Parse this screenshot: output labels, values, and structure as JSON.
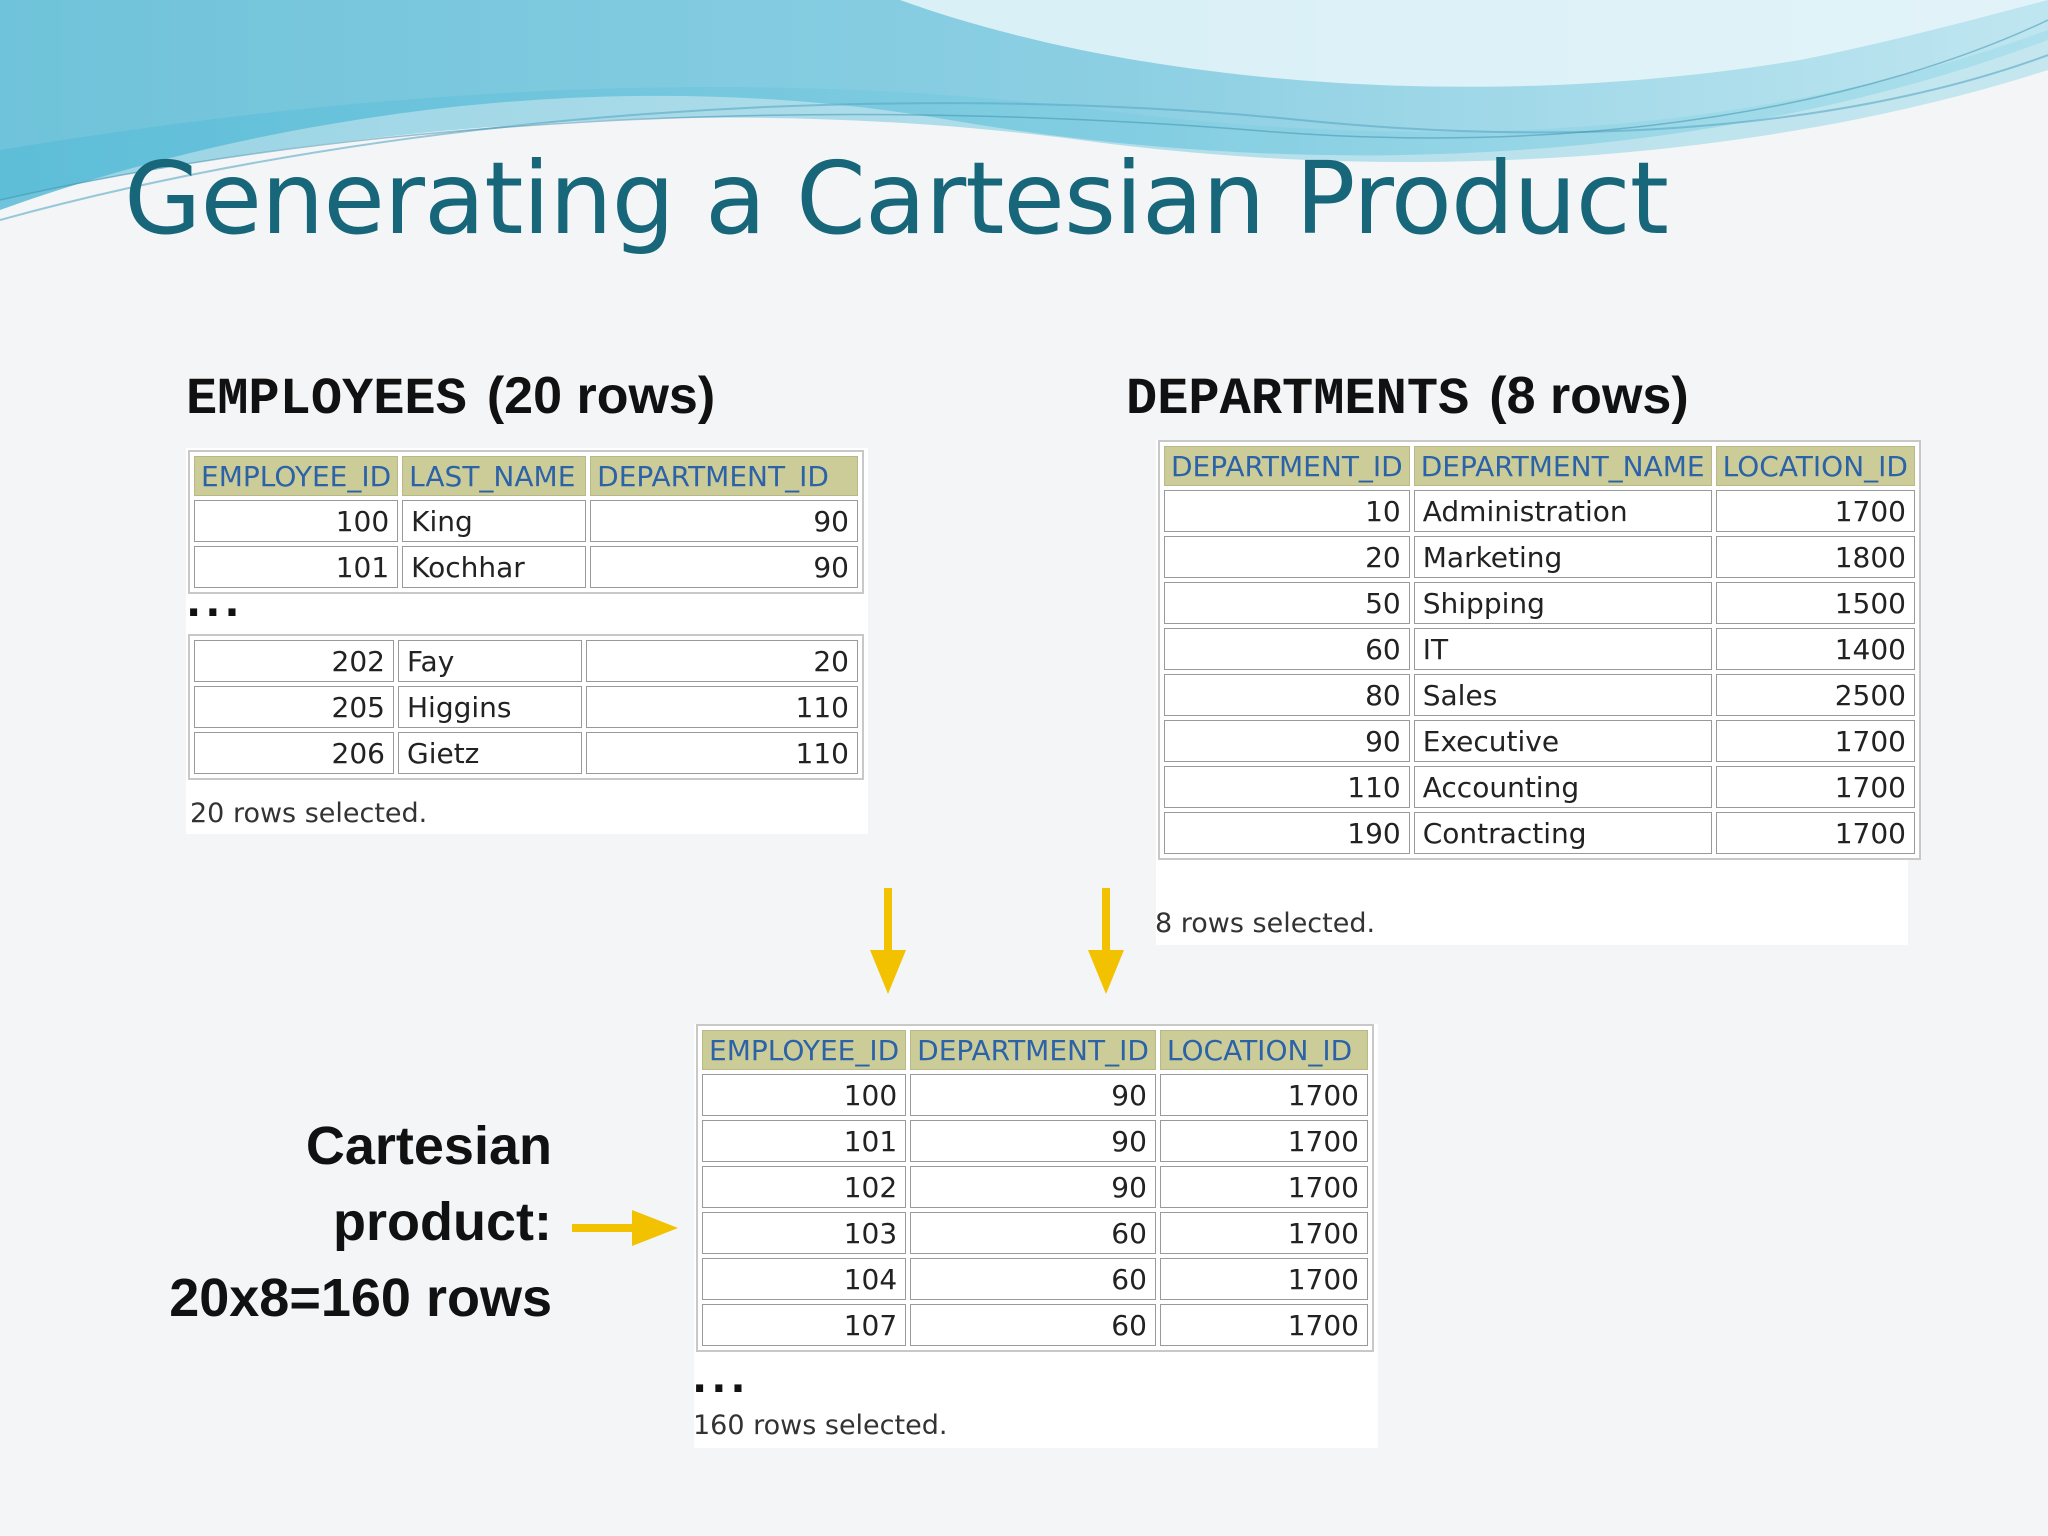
{
  "title": "Generating a Cartesian Product",
  "employees": {
    "table_name": "EMPLOYEES",
    "row_note": "(20 rows)",
    "columns": [
      "EMPLOYEE_ID",
      "LAST_NAME",
      "DEPARTMENT_ID"
    ],
    "rows_top": [
      [
        "100",
        "King",
        "90"
      ],
      [
        "101",
        "Kochhar",
        "90"
      ]
    ],
    "ellipsis": "...",
    "rows_bottom": [
      [
        "202",
        "Fay",
        "20"
      ],
      [
        "205",
        "Higgins",
        "110"
      ],
      [
        "206",
        "Gietz",
        "110"
      ]
    ],
    "footer": "20 rows selected."
  },
  "departments": {
    "table_name": "DEPARTMENTS",
    "row_note": "(8 rows)",
    "columns": [
      "DEPARTMENT_ID",
      "DEPARTMENT_NAME",
      "LOCATION_ID"
    ],
    "rows": [
      [
        "10",
        "Administration",
        "1700"
      ],
      [
        "20",
        "Marketing",
        "1800"
      ],
      [
        "50",
        "Shipping",
        "1500"
      ],
      [
        "60",
        "IT",
        "1400"
      ],
      [
        "80",
        "Sales",
        "2500"
      ],
      [
        "90",
        "Executive",
        "1700"
      ],
      [
        "110",
        "Accounting",
        "1700"
      ],
      [
        "190",
        "Contracting",
        "1700"
      ]
    ],
    "footer": "8 rows selected."
  },
  "product": {
    "columns": [
      "EMPLOYEE_ID",
      "DEPARTMENT_ID",
      "LOCATION_ID"
    ],
    "rows": [
      [
        "100",
        "90",
        "1700"
      ],
      [
        "101",
        "90",
        "1700"
      ],
      [
        "102",
        "90",
        "1700"
      ],
      [
        "103",
        "60",
        "1700"
      ],
      [
        "104",
        "60",
        "1700"
      ],
      [
        "107",
        "60",
        "1700"
      ]
    ],
    "ellipsis": "...",
    "footer": "160 rows selected."
  },
  "cartesian_label": {
    "line1": "Cartesian",
    "line2": "product:",
    "line3": "20x8=160 rows"
  },
  "colors": {
    "title": "#17667a",
    "header_bg": "#cccc99",
    "header_text": "#2b62a8",
    "arrow": "#f2c200"
  }
}
